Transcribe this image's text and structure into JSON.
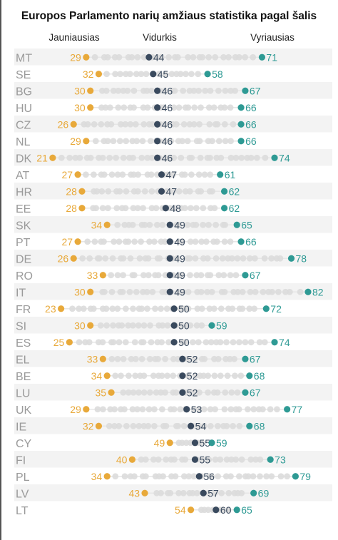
{
  "title": "Europos Parlamento narių amžiaus statistika pagal šalis",
  "column_headers": {
    "youngest": "Jauniausias",
    "average": "Vidurkis",
    "oldest": "Vyriausias"
  },
  "colors": {
    "youngest": "#e8a93a",
    "average": "#3a4a5e",
    "oldest": "#2e9a94",
    "member": "#dcdcdc",
    "row_band": "#f3f3f3",
    "connector": "#e6e6e6",
    "country_label": "#9a9a9a"
  },
  "chart_data": {
    "type": "scatter",
    "title": "Europos Parlamento narių amžiaus statistika pagal šalis",
    "legend": [
      "Jauniausias",
      "Vidurkis",
      "Vyriausias"
    ],
    "x_unit": "age (years)",
    "xlim": [
      20,
      82
    ],
    "grid": false,
    "rows": [
      {
        "country": "MT",
        "youngest": 29,
        "average": 44,
        "oldest": 71
      },
      {
        "country": "SE",
        "youngest": 32,
        "average": 45,
        "oldest": 58
      },
      {
        "country": "BG",
        "youngest": 30,
        "average": 46,
        "oldest": 67
      },
      {
        "country": "HU",
        "youngest": 30,
        "average": 46,
        "oldest": 66
      },
      {
        "country": "CZ",
        "youngest": 26,
        "average": 46,
        "oldest": 66
      },
      {
        "country": "NL",
        "youngest": 29,
        "average": 46,
        "oldest": 66
      },
      {
        "country": "DK",
        "youngest": 21,
        "average": 46,
        "oldest": 74
      },
      {
        "country": "AT",
        "youngest": 27,
        "average": 47,
        "oldest": 61
      },
      {
        "country": "HR",
        "youngest": 28,
        "average": 47,
        "oldest": 62
      },
      {
        "country": "EE",
        "youngest": 28,
        "average": 48,
        "oldest": 62
      },
      {
        "country": "SK",
        "youngest": 34,
        "average": 49,
        "oldest": 65
      },
      {
        "country": "PT",
        "youngest": 27,
        "average": 49,
        "oldest": 66
      },
      {
        "country": "DE",
        "youngest": 26,
        "average": 49,
        "oldest": 78
      },
      {
        "country": "RO",
        "youngest": 33,
        "average": 49,
        "oldest": 67
      },
      {
        "country": "IT",
        "youngest": 30,
        "average": 49,
        "oldest": 82
      },
      {
        "country": "FR",
        "youngest": 23,
        "average": 50,
        "oldest": 72
      },
      {
        "country": "SI",
        "youngest": 30,
        "average": 50,
        "oldest": 59
      },
      {
        "country": "ES",
        "youngest": 25,
        "average": 50,
        "oldest": 74
      },
      {
        "country": "EL",
        "youngest": 33,
        "average": 52,
        "oldest": 67
      },
      {
        "country": "BE",
        "youngest": 34,
        "average": 52,
        "oldest": 68
      },
      {
        "country": "LU",
        "youngest": 35,
        "average": 52,
        "oldest": 67
      },
      {
        "country": "UK",
        "youngest": 29,
        "average": 53,
        "oldest": 77
      },
      {
        "country": "IE",
        "youngest": 32,
        "average": 54,
        "oldest": 68
      },
      {
        "country": "CY",
        "youngest": 49,
        "average": 55,
        "oldest": 59
      },
      {
        "country": "FI",
        "youngest": 40,
        "average": 55,
        "oldest": 73
      },
      {
        "country": "PL",
        "youngest": 34,
        "average": 56,
        "oldest": 79
      },
      {
        "country": "LV",
        "youngest": 43,
        "average": 57,
        "oldest": 69
      },
      {
        "country": "LT",
        "youngest": 54,
        "average": 60,
        "oldest": 65
      }
    ]
  }
}
